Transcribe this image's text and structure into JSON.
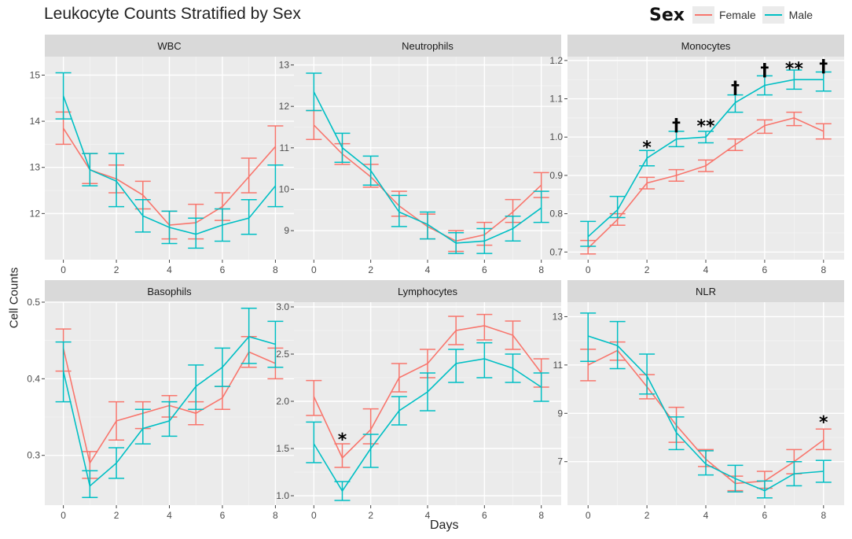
{
  "figure": {
    "title": "Leukocyte Counts Stratified by Sex",
    "xlabel": "Days",
    "ylabel": "Cell Counts"
  },
  "legend": {
    "title": "Sex",
    "items": [
      {
        "label": "Female",
        "color": "#f8766d"
      },
      {
        "label": "Male",
        "color": "#00bfc4"
      }
    ]
  },
  "colors": {
    "female": "#f8766d",
    "male": "#00bfc4",
    "panel_bg": "#ebebeb",
    "strip_bg": "#d9d9d9"
  },
  "chart_data": [
    {
      "type": "line",
      "title": "WBC",
      "x": [
        0,
        1,
        2,
        3,
        4,
        5,
        6,
        7,
        8
      ],
      "xlim": [
        -0.7,
        8.7
      ],
      "ylim": [
        11.0,
        15.4
      ],
      "xticks": [
        0,
        2,
        4,
        6,
        8
      ],
      "yticks": [
        12,
        13,
        14,
        15
      ],
      "series": [
        {
          "name": "Female",
          "values": [
            13.85,
            12.95,
            12.75,
            12.4,
            11.75,
            11.8,
            12.15,
            12.8,
            13.45
          ],
          "lower": [
            13.5,
            12.65,
            12.45,
            12.1,
            11.45,
            11.45,
            11.85,
            12.45,
            13.05
          ],
          "upper": [
            14.2,
            13.3,
            13.05,
            12.7,
            12.05,
            12.2,
            12.45,
            13.2,
            13.9
          ]
        },
        {
          "name": "Male",
          "values": [
            14.55,
            12.95,
            12.7,
            11.95,
            11.7,
            11.55,
            11.75,
            11.9,
            12.6
          ],
          "lower": [
            14.05,
            12.6,
            12.15,
            11.6,
            11.35,
            11.25,
            11.4,
            11.55,
            12.15
          ],
          "upper": [
            15.05,
            13.3,
            13.3,
            12.3,
            12.05,
            11.9,
            12.1,
            12.3,
            13.05
          ]
        }
      ],
      "annotations": []
    },
    {
      "type": "line",
      "title": "Neutrophils",
      "x": [
        0,
        1,
        2,
        3,
        4,
        5,
        6,
        7,
        8
      ],
      "xlim": [
        -0.7,
        8.7
      ],
      "ylim": [
        8.3,
        13.2
      ],
      "xticks": [
        0,
        2,
        4,
        6,
        8
      ],
      "yticks": [
        9,
        10,
        11,
        12,
        13
      ],
      "series": [
        {
          "name": "Female",
          "values": [
            11.55,
            10.85,
            10.3,
            9.6,
            9.1,
            8.75,
            8.9,
            9.45,
            10.1
          ],
          "lower": [
            11.2,
            10.6,
            10.05,
            9.35,
            8.8,
            8.5,
            8.65,
            9.2,
            9.8
          ],
          "upper": [
            11.9,
            11.1,
            10.6,
            9.95,
            9.4,
            9.0,
            9.2,
            9.75,
            10.4
          ]
        },
        {
          "name": "Male",
          "values": [
            12.35,
            11.0,
            10.45,
            9.45,
            9.15,
            8.7,
            8.75,
            9.05,
            9.55
          ],
          "lower": [
            11.9,
            10.65,
            10.1,
            9.1,
            8.8,
            8.45,
            8.45,
            8.75,
            9.2
          ],
          "upper": [
            12.8,
            11.35,
            10.8,
            9.85,
            9.45,
            8.95,
            9.05,
            9.35,
            9.95
          ]
        }
      ],
      "annotations": []
    },
    {
      "type": "line",
      "title": "Monocytes",
      "x": [
        0,
        1,
        2,
        3,
        4,
        5,
        6,
        7,
        8
      ],
      "xlim": [
        -0.7,
        8.7
      ],
      "ylim": [
        0.68,
        1.21
      ],
      "xticks": [
        0,
        2,
        4,
        6,
        8
      ],
      "yticks": [
        0.7,
        0.8,
        0.9,
        1.0,
        1.1,
        1.2
      ],
      "series": [
        {
          "name": "Female",
          "values": [
            0.71,
            0.785,
            0.88,
            0.9,
            0.925,
            0.98,
            1.03,
            1.05,
            1.015
          ],
          "lower": [
            0.695,
            0.77,
            0.865,
            0.885,
            0.91,
            0.965,
            1.01,
            1.03,
            0.995
          ],
          "upper": [
            0.73,
            0.8,
            0.895,
            0.915,
            0.94,
            0.995,
            1.045,
            1.065,
            1.035
          ]
        },
        {
          "name": "Male",
          "values": [
            0.74,
            0.81,
            0.945,
            0.995,
            1.0,
            1.09,
            1.135,
            1.15,
            1.15
          ],
          "lower": [
            0.715,
            0.79,
            0.925,
            0.975,
            0.985,
            1.065,
            1.11,
            1.125,
            1.12
          ],
          "upper": [
            0.78,
            0.845,
            0.965,
            1.015,
            1.015,
            1.11,
            1.16,
            1.175,
            1.17
          ]
        }
      ],
      "annotations": [
        {
          "x": 2,
          "y": 0.975,
          "text": "*"
        },
        {
          "x": 3,
          "y": 1.032,
          "text": "†"
        },
        {
          "x": 4,
          "y": 1.03,
          "text": "**"
        },
        {
          "x": 5,
          "y": 1.13,
          "text": "†"
        },
        {
          "x": 6,
          "y": 1.176,
          "text": "†"
        },
        {
          "x": 7,
          "y": 1.18,
          "text": "**"
        },
        {
          "x": 8,
          "y": 1.186,
          "text": "†"
        }
      ]
    },
    {
      "type": "line",
      "title": "Basophils",
      "x": [
        0,
        1,
        2,
        3,
        4,
        5,
        6,
        7,
        8
      ],
      "xlim": [
        -0.7,
        8.7
      ],
      "ylim": [
        0.235,
        0.5
      ],
      "xticks": [
        0,
        2,
        4,
        6,
        8
      ],
      "yticks": [
        0.3,
        0.4,
        0.5
      ],
      "series": [
        {
          "name": "Female",
          "values": [
            0.44,
            0.29,
            0.345,
            0.355,
            0.365,
            0.355,
            0.375,
            0.435,
            0.42
          ],
          "lower": [
            0.41,
            0.27,
            0.32,
            0.335,
            0.35,
            0.34,
            0.36,
            0.415,
            0.4
          ],
          "upper": [
            0.465,
            0.305,
            0.37,
            0.37,
            0.378,
            0.37,
            0.39,
            0.455,
            0.44
          ]
        },
        {
          "name": "Male",
          "values": [
            0.41,
            0.26,
            0.29,
            0.335,
            0.345,
            0.39,
            0.415,
            0.455,
            0.445
          ],
          "lower": [
            0.37,
            0.245,
            0.27,
            0.315,
            0.325,
            0.36,
            0.39,
            0.42,
            0.415
          ],
          "upper": [
            0.448,
            0.28,
            0.31,
            0.36,
            0.37,
            0.418,
            0.44,
            0.492,
            0.475
          ]
        }
      ],
      "annotations": []
    },
    {
      "type": "line",
      "title": "Lymphocytes",
      "x": [
        0,
        1,
        2,
        3,
        4,
        5,
        6,
        7,
        8
      ],
      "xlim": [
        -0.7,
        8.7
      ],
      "ylim": [
        0.9,
        3.05
      ],
      "xticks": [
        0,
        2,
        4,
        6,
        8
      ],
      "yticks": [
        1.0,
        1.5,
        2.0,
        2.5,
        3.0
      ],
      "series": [
        {
          "name": "Female",
          "values": [
            2.05,
            1.4,
            1.7,
            2.25,
            2.4,
            2.75,
            2.8,
            2.7,
            2.3
          ],
          "lower": [
            1.85,
            1.3,
            1.55,
            2.1,
            2.25,
            2.6,
            2.65,
            2.55,
            2.15
          ],
          "upper": [
            2.22,
            1.55,
            1.92,
            2.4,
            2.55,
            2.9,
            2.92,
            2.85,
            2.45
          ]
        },
        {
          "name": "Male",
          "values": [
            1.55,
            1.05,
            1.5,
            1.9,
            2.1,
            2.4,
            2.45,
            2.35,
            2.15
          ],
          "lower": [
            1.35,
            0.95,
            1.3,
            1.75,
            1.9,
            2.2,
            2.25,
            2.2,
            2.0
          ],
          "upper": [
            1.78,
            1.15,
            1.65,
            2.05,
            2.3,
            2.55,
            2.62,
            2.5,
            2.3
          ]
        }
      ],
      "annotations": [
        {
          "x": 1,
          "y": 1.6,
          "text": "*"
        }
      ]
    },
    {
      "type": "line",
      "title": "NLR",
      "x": [
        0,
        1,
        2,
        3,
        4,
        5,
        6,
        7,
        8
      ],
      "xlim": [
        -0.7,
        8.7
      ],
      "ylim": [
        5.2,
        13.6
      ],
      "xticks": [
        0,
        2,
        4,
        6,
        8
      ],
      "yticks": [
        7,
        9,
        11,
        13
      ],
      "series": [
        {
          "name": "Female",
          "values": [
            11.0,
            11.6,
            10.1,
            8.5,
            7.1,
            6.1,
            6.2,
            7.0,
            7.9
          ],
          "lower": [
            10.35,
            11.2,
            9.6,
            7.8,
            6.8,
            5.8,
            5.9,
            6.5,
            7.5
          ],
          "upper": [
            11.65,
            11.95,
            10.6,
            9.25,
            7.5,
            6.4,
            6.6,
            7.5,
            8.35
          ]
        },
        {
          "name": "Male",
          "values": [
            12.2,
            11.8,
            10.55,
            8.2,
            6.9,
            6.3,
            5.8,
            6.5,
            6.6
          ],
          "lower": [
            11.15,
            10.85,
            9.8,
            7.5,
            6.45,
            5.75,
            5.5,
            6.0,
            6.15
          ],
          "upper": [
            13.15,
            12.8,
            11.45,
            8.85,
            7.45,
            6.85,
            6.2,
            7.0,
            7.05
          ]
        }
      ],
      "annotations": [
        {
          "x": 8,
          "y": 8.65,
          "text": "*"
        }
      ]
    }
  ]
}
